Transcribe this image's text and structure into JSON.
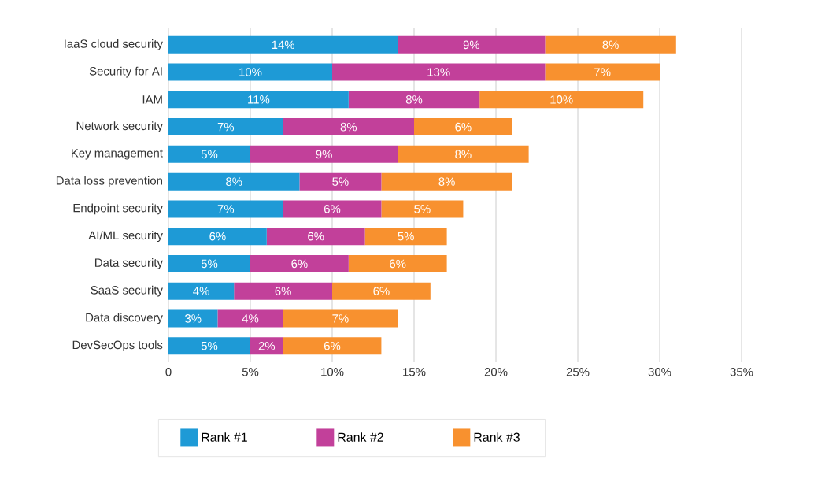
{
  "chart_data": {
    "type": "bar",
    "orientation": "horizontal",
    "stacked": true,
    "grid": "x",
    "legend": "bottom",
    "categories": [
      "IaaS cloud security",
      "Security for AI",
      "IAM",
      "Network security",
      "Key management",
      "Data loss prevention",
      "Endpoint security",
      "AI/ML security",
      "Data security",
      "SaaS security",
      "Data discovery",
      "DevSecOps tools"
    ],
    "xlim": [
      0,
      35
    ],
    "xticks": [
      {
        "value": 0,
        "label": "0"
      },
      {
        "value": 5,
        "label": "5%"
      },
      {
        "value": 10,
        "label": "10%"
      },
      {
        "value": 15,
        "label": "15%"
      },
      {
        "value": 20,
        "label": "20%"
      },
      {
        "value": 25,
        "label": "25%"
      },
      {
        "value": 30,
        "label": "30%"
      },
      {
        "value": 35,
        "label": "35%"
      }
    ],
    "series": [
      {
        "name": "Rank #1",
        "color": "#1e9ad6",
        "values": [
          14,
          10,
          11,
          7,
          5,
          8,
          7,
          6,
          5,
          4,
          3,
          5
        ],
        "value_labels": [
          "14%",
          "10%",
          "11%",
          "7%",
          "5%",
          "8%",
          "7%",
          "6%",
          "5%",
          "4%",
          "3%",
          "5%"
        ]
      },
      {
        "name": "Rank #2",
        "color": "#c2409a",
        "values": [
          9,
          13,
          8,
          8,
          9,
          5,
          6,
          6,
          6,
          6,
          4,
          2
        ],
        "value_labels": [
          "9%",
          "13%",
          "8%",
          "8%",
          "9%",
          "5%",
          "6%",
          "6%",
          "6%",
          "6%",
          "4%",
          "2%"
        ]
      },
      {
        "name": "Rank #3",
        "color": "#f8912f",
        "values": [
          8,
          7,
          10,
          6,
          8,
          8,
          5,
          5,
          6,
          6,
          7,
          6
        ],
        "value_labels": [
          "8%",
          "7%",
          "10%",
          "6%",
          "8%",
          "8%",
          "5%",
          "5%",
          "6%",
          "6%",
          "7%",
          "6%"
        ]
      }
    ]
  }
}
